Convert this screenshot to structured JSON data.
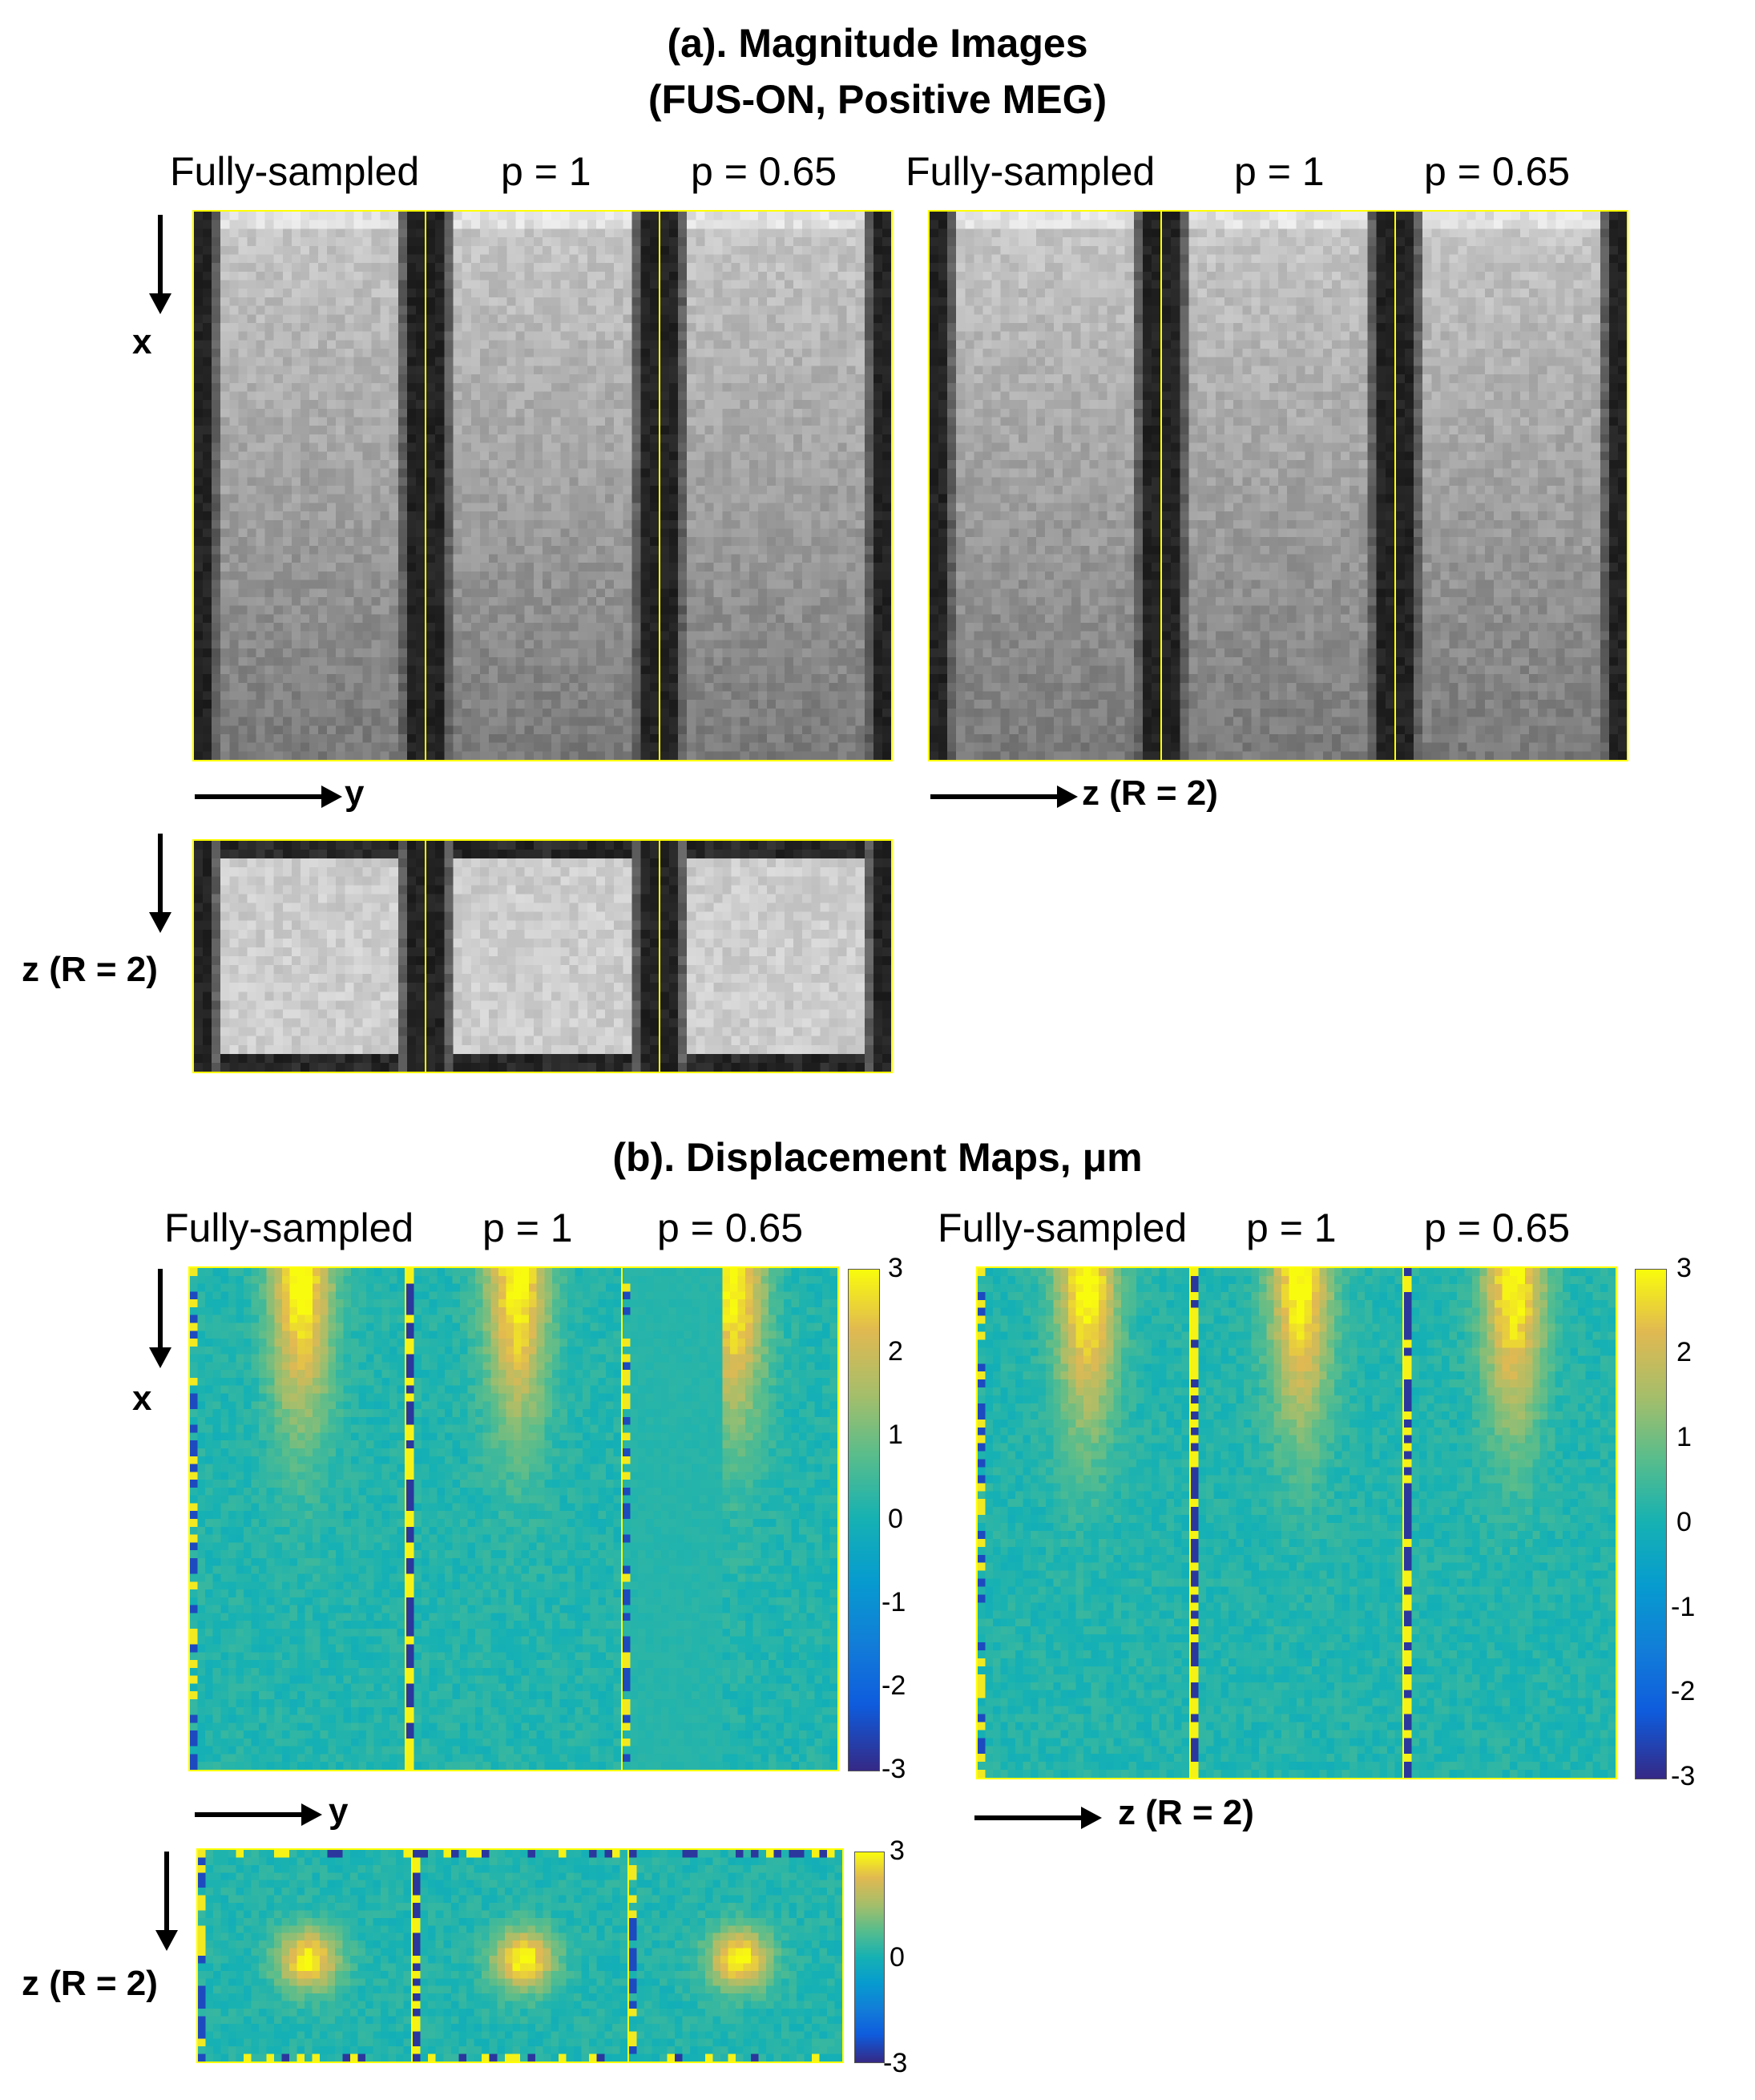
{
  "section_a": {
    "title_line1": "(a). Magnitude Images",
    "title_line2": "(FUS-ON, Positive MEG)",
    "left_columns": [
      "Fully-sampled",
      "p = 1",
      "p = 0.65"
    ],
    "right_columns": [
      "Fully-sampled",
      "p = 1",
      "p = 0.65"
    ],
    "axis_x": "x",
    "axis_y": "y",
    "axis_z_right": "z (R = 2)",
    "axis_z_left": "z (R = 2)"
  },
  "section_b": {
    "title": "(b). Displacement Maps, μm",
    "left_columns": [
      "Fully-sampled",
      "p = 1",
      "p = 0.65"
    ],
    "right_columns": [
      "Fully-sampled",
      "p = 1",
      "p = 0.65"
    ],
    "axis_x": "x",
    "axis_y": "y",
    "axis_z_right": "z (R = 2)",
    "axis_z_left": "z (R = 2)",
    "colorbar_ticks_full": [
      "3",
      "2",
      "1",
      "0",
      "-1",
      "-2",
      "-3"
    ],
    "colorbar_ticks_small": [
      "3",
      "0",
      "-3"
    ]
  },
  "colormap": "parula",
  "image_style": "grayscale"
}
